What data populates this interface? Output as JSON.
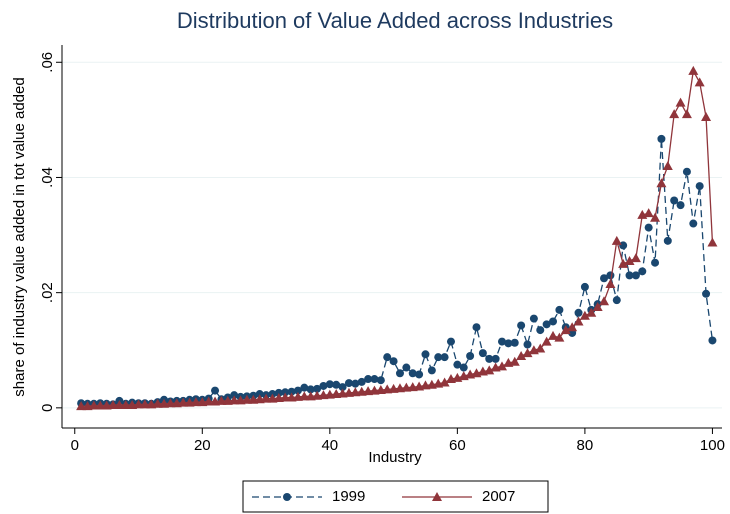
{
  "chart_data": {
    "type": "line",
    "title": "Distribution of Value Added across Industries",
    "x_label": "Industry",
    "y_label": "share of industry value added in tot value added",
    "x": [
      1,
      2,
      3,
      4,
      5,
      6,
      7,
      8,
      9,
      10,
      11,
      12,
      13,
      14,
      15,
      16,
      17,
      18,
      19,
      20,
      21,
      22,
      23,
      24,
      25,
      26,
      27,
      28,
      29,
      30,
      31,
      32,
      33,
      34,
      35,
      36,
      37,
      38,
      39,
      40,
      41,
      42,
      43,
      44,
      45,
      46,
      47,
      48,
      49,
      50,
      51,
      52,
      53,
      54,
      55,
      56,
      57,
      58,
      59,
      60,
      61,
      62,
      63,
      64,
      65,
      66,
      67,
      68,
      69,
      70,
      71,
      72,
      73,
      74,
      75,
      76,
      77,
      78,
      79,
      80,
      81,
      82,
      83,
      84,
      85,
      86,
      87,
      88,
      89,
      90,
      91,
      92,
      93,
      94,
      95,
      96,
      97,
      98,
      99,
      100
    ],
    "series": [
      {
        "name": "1999",
        "color": "#1a476f",
        "dashed": true,
        "marker": "circle",
        "values": [
          0.0008,
          0.0007,
          0.0007,
          0.0008,
          0.0007,
          0.0006,
          0.0012,
          0.0007,
          0.0009,
          0.0008,
          0.0008,
          0.0007,
          0.001,
          0.0014,
          0.0011,
          0.0012,
          0.0012,
          0.0014,
          0.0015,
          0.0014,
          0.0016,
          0.003,
          0.0015,
          0.0018,
          0.0022,
          0.0019,
          0.002,
          0.0021,
          0.0024,
          0.0022,
          0.0024,
          0.0026,
          0.0027,
          0.0028,
          0.003,
          0.0035,
          0.0032,
          0.0033,
          0.0038,
          0.0041,
          0.004,
          0.0036,
          0.0043,
          0.0042,
          0.0045,
          0.005,
          0.005,
          0.0048,
          0.0088,
          0.0081,
          0.006,
          0.007,
          0.006,
          0.0058,
          0.0093,
          0.0065,
          0.0088,
          0.0088,
          0.0115,
          0.0075,
          0.007,
          0.009,
          0.014,
          0.0095,
          0.0085,
          0.0085,
          0.0115,
          0.0112,
          0.0113,
          0.0143,
          0.011,
          0.0155,
          0.0135,
          0.0145,
          0.015,
          0.017,
          0.014,
          0.013,
          0.0165,
          0.021,
          0.017,
          0.018,
          0.0225,
          0.023,
          0.0187,
          0.0282,
          0.023,
          0.023,
          0.0237,
          0.0313,
          0.0252,
          0.0467,
          0.029,
          0.036,
          0.0352,
          0.041,
          0.032,
          0.0385,
          0.0198,
          0.0117
        ]
      },
      {
        "name": "2007",
        "color": "#90353b",
        "dashed": false,
        "marker": "triangle",
        "values": [
          0.0003,
          0.0003,
          0.0004,
          0.0004,
          0.0004,
          0.0005,
          0.0005,
          0.0005,
          0.0005,
          0.0006,
          0.0006,
          0.0006,
          0.0007,
          0.0007,
          0.0008,
          0.0008,
          0.0009,
          0.0009,
          0.001,
          0.001,
          0.0011,
          0.0011,
          0.0012,
          0.0012,
          0.0013,
          0.0013,
          0.0014,
          0.0014,
          0.0015,
          0.0016,
          0.0016,
          0.0017,
          0.0018,
          0.0018,
          0.0019,
          0.002,
          0.002,
          0.0021,
          0.0022,
          0.0023,
          0.0024,
          0.0025,
          0.0026,
          0.0027,
          0.0028,
          0.0029,
          0.003,
          0.0031,
          0.0032,
          0.0033,
          0.0034,
          0.0035,
          0.0036,
          0.0037,
          0.0039,
          0.004,
          0.0042,
          0.0044,
          0.005,
          0.0052,
          0.0055,
          0.0058,
          0.006,
          0.0063,
          0.0065,
          0.007,
          0.0072,
          0.0078,
          0.008,
          0.009,
          0.0095,
          0.01,
          0.0103,
          0.0115,
          0.0125,
          0.0122,
          0.0135,
          0.014,
          0.015,
          0.016,
          0.0165,
          0.0175,
          0.0185,
          0.0215,
          0.029,
          0.025,
          0.0255,
          0.026,
          0.0335,
          0.0338,
          0.033,
          0.039,
          0.042,
          0.051,
          0.053,
          0.051,
          0.0585,
          0.0565,
          0.0505,
          0.0287
        ]
      }
    ],
    "xlim": [
      -2,
      101.5
    ],
    "ylim": [
      -0.0035,
      0.063
    ],
    "xticks": [
      0,
      20,
      40,
      60,
      80,
      100
    ],
    "yticks": [
      0,
      {
        "value": 0.02,
        "label": ".02"
      },
      {
        "value": 0.04,
        "label": ".04"
      },
      {
        "value": 0.06,
        "label": ".06"
      }
    ],
    "grid": true,
    "legend": "bottom"
  }
}
